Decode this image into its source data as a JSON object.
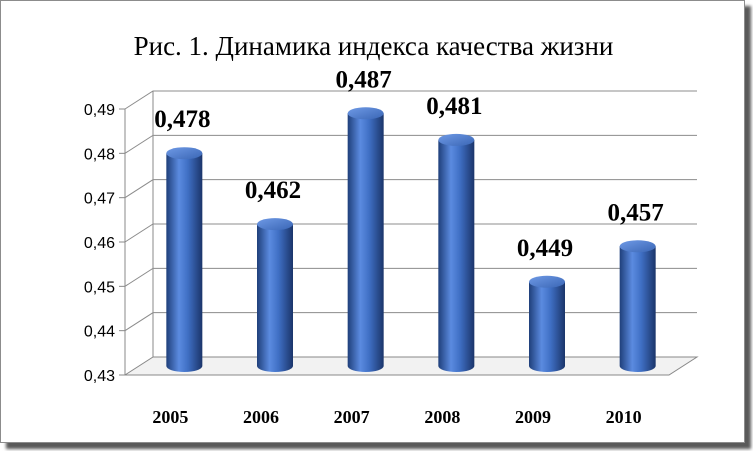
{
  "title": "Рис. 1. Динамика  индекса качества жизни",
  "chart_data": {
    "type": "bar",
    "title": "Рис. 1. Динамика  индекса качества жизни",
    "xlabel": "",
    "ylabel": "",
    "categories": [
      "2005",
      "2006",
      "2007",
      "2008",
      "2009",
      "2010"
    ],
    "values": [
      0.478,
      0.462,
      0.487,
      0.481,
      0.449,
      0.457
    ],
    "data_labels": [
      "0,478",
      "0,462",
      "0,487",
      "0,481",
      "0,449",
      "0,457"
    ],
    "ylim": [
      0.43,
      0.49
    ],
    "yticks": [
      "0,43",
      "0,44",
      "0,45",
      "0,46",
      "0,47",
      "0,48",
      "0,49"
    ],
    "grid": true,
    "style": "3d-cylinder",
    "bar_color": "#4472c4",
    "bar_color_dark": "#1f3f7a",
    "legend": "none"
  }
}
